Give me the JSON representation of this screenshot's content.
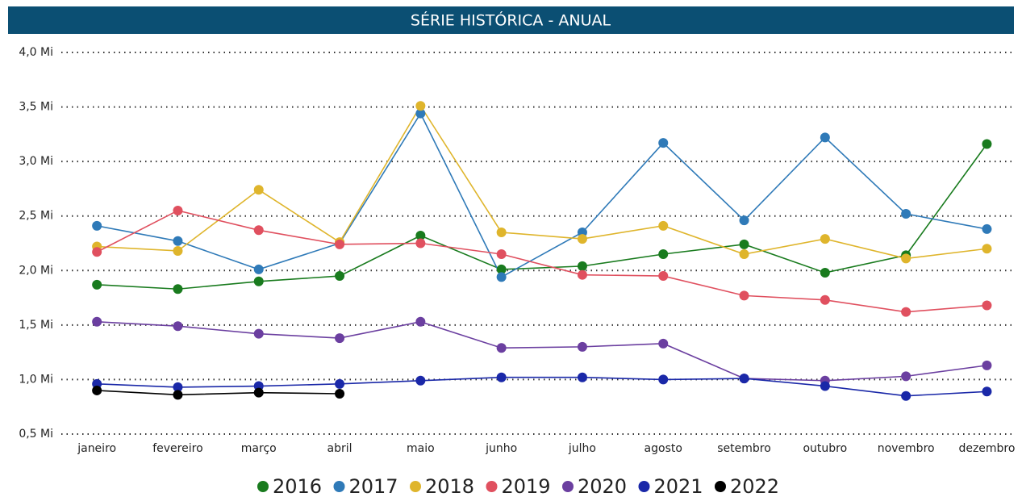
{
  "chart_data": {
    "type": "line",
    "title": "SÉRIE HISTÓRICA - ANUAL",
    "categories": [
      "janeiro",
      "fevereiro",
      "março",
      "abril",
      "maio",
      "junho",
      "julho",
      "agosto",
      "setembro",
      "outubro",
      "novembro",
      "dezembro"
    ],
    "series": [
      {
        "name": "2016",
        "color": "#197b1e",
        "values": [
          1.87,
          1.83,
          1.9,
          1.95,
          2.32,
          2.01,
          2.04,
          2.15,
          2.24,
          1.98,
          2.14,
          3.16
        ]
      },
      {
        "name": "2017",
        "color": "#2f7ab8",
        "values": [
          2.41,
          2.27,
          2.01,
          2.25,
          3.44,
          1.94,
          2.35,
          3.17,
          2.46,
          3.22,
          2.52,
          2.38
        ]
      },
      {
        "name": "2018",
        "color": "#dfb52c",
        "values": [
          2.22,
          2.18,
          2.74,
          2.26,
          3.51,
          2.35,
          2.29,
          2.41,
          2.15,
          2.29,
          2.11,
          2.2
        ]
      },
      {
        "name": "2019",
        "color": "#e0505f",
        "values": [
          2.17,
          2.55,
          2.37,
          2.24,
          2.25,
          2.15,
          1.96,
          1.95,
          1.77,
          1.73,
          1.62,
          1.68
        ]
      },
      {
        "name": "2020",
        "color": "#6b3fa0",
        "values": [
          1.53,
          1.49,
          1.42,
          1.38,
          1.53,
          1.29,
          1.3,
          1.33,
          1.01,
          0.99,
          1.03,
          1.13
        ]
      },
      {
        "name": "2021",
        "color": "#1a28a8",
        "values": [
          0.96,
          0.93,
          0.94,
          0.96,
          0.99,
          1.02,
          1.02,
          1.0,
          1.01,
          0.94,
          0.85,
          0.89
        ]
      },
      {
        "name": "2022",
        "color": "#000000",
        "values": [
          0.9,
          0.86,
          0.88,
          0.87,
          null,
          null,
          null,
          null,
          null,
          null,
          null,
          null
        ]
      }
    ],
    "ylim": [
      0.5,
      4.0
    ],
    "yticks": [
      {
        "value": 0.5,
        "label": "0,5 Mi"
      },
      {
        "value": 1.0,
        "label": "1,0 Mi"
      },
      {
        "value": 1.5,
        "label": "1,5 Mi"
      },
      {
        "value": 2.0,
        "label": "2,0 Mi"
      },
      {
        "value": 2.5,
        "label": "2,5 Mi"
      },
      {
        "value": 3.0,
        "label": "3,0 Mi"
      },
      {
        "value": 3.5,
        "label": "3,5 Mi"
      },
      {
        "value": 4.0,
        "label": "4,0 Mi"
      }
    ],
    "grid": true,
    "legend": "bottom"
  }
}
